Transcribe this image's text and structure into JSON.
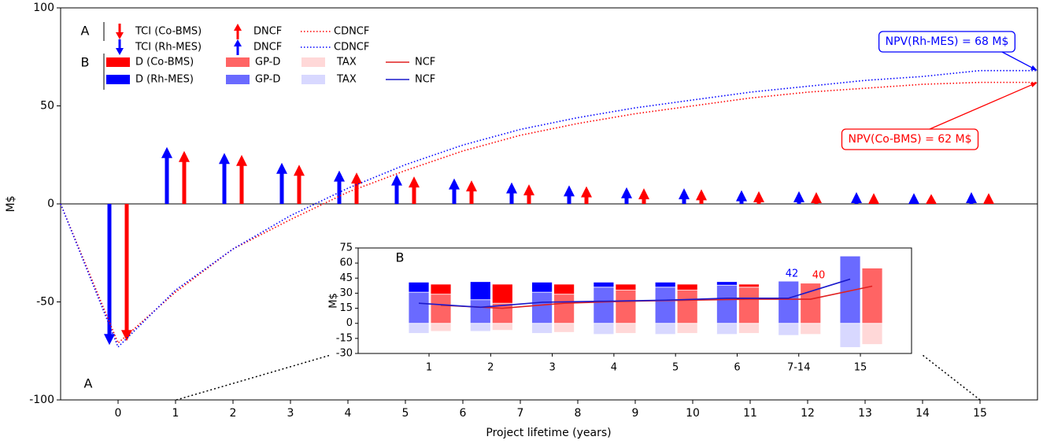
{
  "chart_data": [
    {
      "type": "arrow",
      "legend_groups": [
        "A",
        "B"
      ],
      "panel_label": "A",
      "xlabel": "Project lifetime (years)",
      "ylabel": "M$",
      "xlim": [
        -1,
        16
      ],
      "ylim": [
        -100,
        100
      ],
      "xticks": [
        0,
        1,
        2,
        3,
        4,
        5,
        6,
        7,
        8,
        9,
        10,
        11,
        12,
        13,
        14,
        15
      ],
      "yticks": [
        -100,
        -50,
        0,
        50,
        100
      ],
      "series": [
        {
          "name": "TCI (Co-BMS)",
          "color": "#ff0000",
          "style": "arrow",
          "x": [
            0
          ],
          "values": [
            -70
          ]
        },
        {
          "name": "TCI (Rh-MES)",
          "color": "#0000ff",
          "style": "arrow",
          "x": [
            0
          ],
          "values": [
            -72
          ]
        },
        {
          "name": "DNCF",
          "color": "#ff0000",
          "style": "arrow",
          "x": [
            1,
            2,
            3,
            4,
            5,
            6,
            7,
            8,
            9,
            10,
            11,
            12,
            13,
            14,
            15
          ],
          "values": [
            27,
            25,
            20,
            16,
            14,
            12,
            10,
            9,
            8,
            7.5,
            6.5,
            6,
            5.5,
            5,
            5.5
          ]
        },
        {
          "name": "DNCF",
          "color": "#0000ff",
          "style": "arrow",
          "x": [
            1,
            2,
            3,
            4,
            5,
            6,
            7,
            8,
            9,
            10,
            11,
            12,
            13,
            14,
            15
          ],
          "values": [
            29,
            26,
            21,
            17,
            15,
            13,
            11,
            9.5,
            8.5,
            8,
            7,
            6.5,
            6,
            5.5,
            6
          ]
        },
        {
          "name": "CDNCF",
          "color": "#ff0000",
          "style": "dotted",
          "x": [
            -1,
            0,
            1,
            2,
            3,
            4,
            5,
            6,
            7,
            8,
            9,
            10,
            11,
            12,
            13,
            14,
            15,
            16
          ],
          "values": [
            0,
            -71,
            -45,
            -23,
            -8,
            6,
            17,
            27,
            35,
            41,
            46,
            50,
            54,
            57,
            59,
            61,
            62,
            62
          ]
        },
        {
          "name": "CDNCF",
          "color": "#0000ff",
          "style": "dotted",
          "x": [
            -1,
            0,
            1,
            2,
            3,
            4,
            5,
            6,
            7,
            8,
            9,
            10,
            11,
            12,
            13,
            14,
            15,
            16
          ],
          "values": [
            0,
            -73,
            -44,
            -23,
            -6,
            8,
            20,
            30,
            38,
            44,
            49,
            53,
            57,
            60,
            63,
            65,
            68,
            68
          ]
        }
      ],
      "annotations": [
        {
          "text": "NPV(Rh-MES) = 68 M$",
          "color": "#0000ff"
        },
        {
          "text": "NPV(Co-BMS) = 62 M$",
          "color": "#ff0000"
        }
      ]
    },
    {
      "type": "bar",
      "panel_label": "B",
      "ylabel": "M$",
      "categories": [
        "1",
        "2",
        "3",
        "4",
        "5",
        "6",
        "7-14",
        "15"
      ],
      "ylim": [
        -30,
        75
      ],
      "yticks": [
        -30,
        -15,
        0,
        15,
        30,
        45,
        60,
        75
      ],
      "series": [
        {
          "name": "D (Co-BMS)",
          "color": "#ff0000",
          "style": "bar",
          "values": [
            10,
            19,
            10,
            6,
            6,
            3,
            0,
            0
          ]
        },
        {
          "name": "D (Rh-MES)",
          "color": "#0000ff",
          "style": "bar",
          "values": [
            10,
            18,
            10,
            5,
            5,
            3.5,
            0,
            0
          ]
        },
        {
          "name": "GP-D",
          "color": "#ff6464",
          "style": "bar",
          "values": [
            29,
            20,
            29,
            33,
            33,
            36,
            40,
            55
          ]
        },
        {
          "name": "GP-D",
          "color": "#6a6aff",
          "style": "bar",
          "values": [
            31,
            23.5,
            31,
            36,
            36,
            38,
            42,
            67
          ]
        },
        {
          "name": "TAX",
          "color": "#ffd8d8",
          "style": "bar",
          "values": [
            -8,
            -7,
            -9,
            -10,
            -10,
            -10,
            -11,
            -21
          ]
        },
        {
          "name": "TAX",
          "color": "#d8d8ff",
          "style": "bar",
          "values": [
            -10,
            -8,
            -10,
            -11,
            -11,
            -11,
            -12,
            -24
          ]
        },
        {
          "name": "NCF",
          "color": "#e02020",
          "style": "line",
          "values": [
            18,
            15,
            20,
            22,
            23,
            24,
            24,
            37
          ]
        },
        {
          "name": "NCF",
          "color": "#1a1acc",
          "style": "line",
          "values": [
            20,
            16,
            21,
            22,
            23,
            25,
            25,
            44
          ]
        }
      ],
      "annotations": [
        {
          "text": "42",
          "color": "#0000ff"
        },
        {
          "text": "40",
          "color": "#ff0000"
        }
      ]
    }
  ]
}
